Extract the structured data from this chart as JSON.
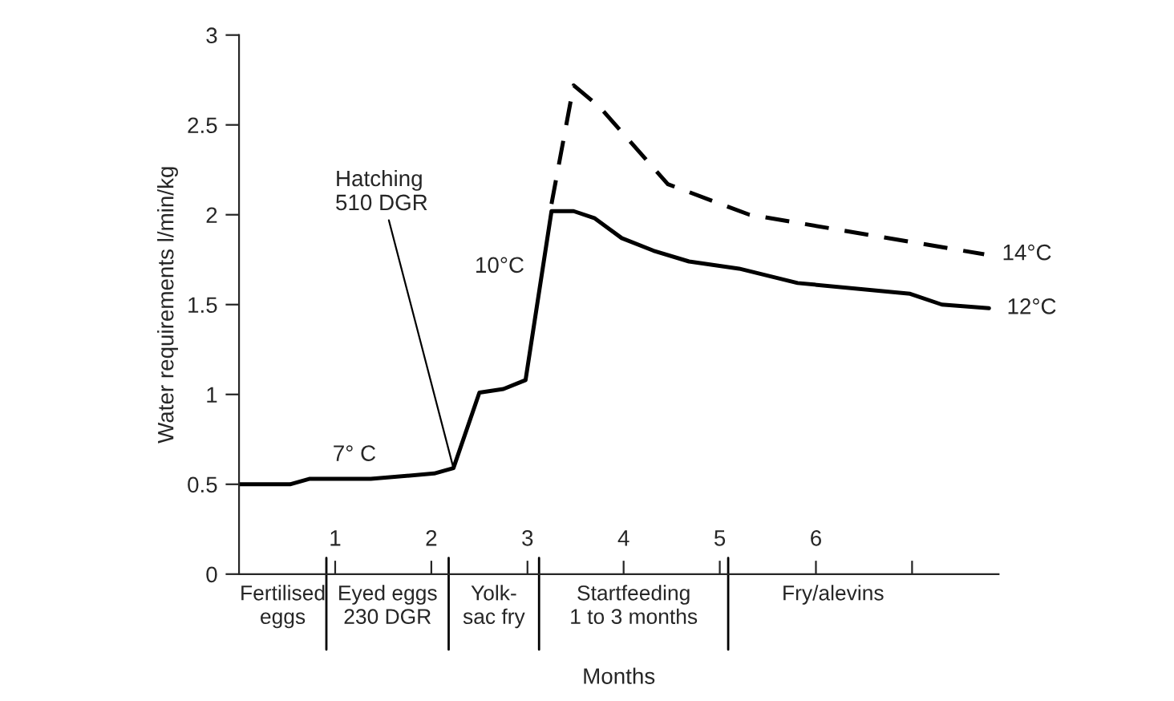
{
  "chart_data": {
    "type": "line",
    "xlabel": "Months",
    "ylabel": "Water requirements l/min/kg",
    "xlim": [
      0,
      7.9
    ],
    "ylim": [
      0,
      3
    ],
    "xticks": [
      1,
      2,
      3,
      4,
      5,
      6,
      {
        "value": 7,
        "label": null
      }
    ],
    "yticks": [
      0,
      0.5,
      1,
      1.5,
      2,
      2.5,
      3
    ],
    "grid": false,
    "legend": false,
    "tick_labels": "xy",
    "series": [
      {
        "name": "14°C",
        "color": "#000000",
        "line_style": "dashed",
        "x": [
          3.25,
          3.48,
          3.75,
          4.46,
          5.31,
          7.75
        ],
        "values": [
          2.06,
          2.72,
          2.6,
          2.17,
          2.0,
          1.78
        ]
      },
      {
        "name": "12°C",
        "color": "#000000",
        "line_style": "solid",
        "x": [
          0,
          0.53,
          0.73,
          1.37,
          2.03,
          2.23,
          2.5,
          2.75,
          2.98,
          3.25,
          3.48,
          3.7,
          3.98,
          4.31,
          4.68,
          5.2,
          5.81,
          6.98,
          7.31,
          7.8
        ],
        "values": [
          0.5,
          0.5,
          0.53,
          0.53,
          0.56,
          0.59,
          1.01,
          1.03,
          1.08,
          2.02,
          2.02,
          1.98,
          1.87,
          1.8,
          1.74,
          1.7,
          1.62,
          1.56,
          1.5,
          1.48
        ]
      }
    ],
    "annotations": [
      {
        "text": "Hatching\n510 DGR",
        "x": 2.23,
        "y": 0.59
      },
      {
        "text": "7° C",
        "x": 1.2,
        "y": 0.53
      },
      "10°C",
      "Fertilised\neggs",
      "Eyed eggs\n230 DGR",
      "Yolk-\nsac fry",
      "Startfeeding\n1 to 3 months",
      "Fry/alevins"
    ]
  }
}
